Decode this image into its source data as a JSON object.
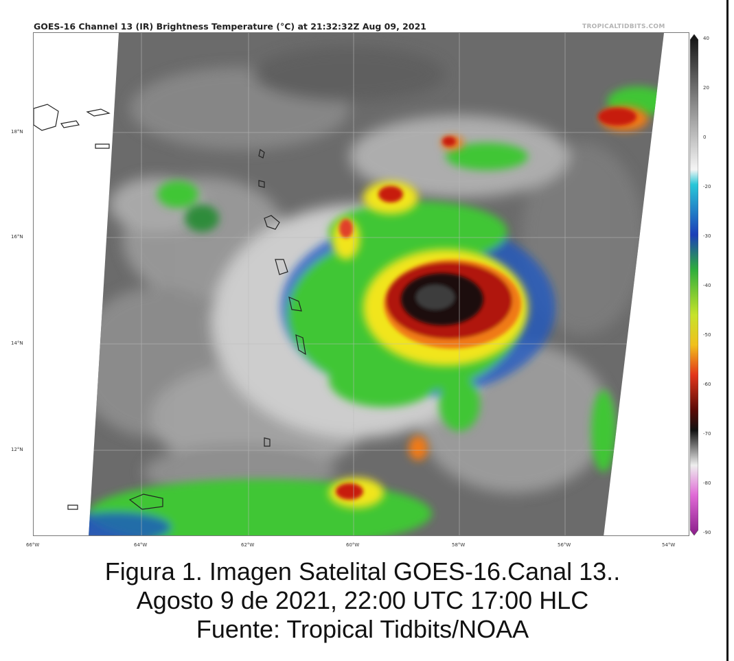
{
  "map_title": "GOES-16 Channel 13 (IR) Brightness Temperature (°C) at 21:32:32Z Aug 09, 2021",
  "watermark": "TROPICALTIDBITS.COM",
  "lat_labels": [
    "18°N",
    "16°N",
    "14°N",
    "12°N"
  ],
  "lon_labels": [
    "66°W",
    "64°W",
    "62°W",
    "60°W",
    "58°W",
    "56°W",
    "54°W"
  ],
  "colorbar": {
    "unit": "°C",
    "ticks": [
      "40",
      "20",
      "0",
      "-20",
      "-30",
      "-40",
      "-50",
      "-60",
      "-70",
      "-80",
      "-90"
    ]
  },
  "caption": {
    "line1": "Figura 1. Imagen Satelital GOES-16.Canal 13..",
    "line2": "Agosto 9 de 2021, 22:00 UTC 17:00 HLC",
    "line3": "Fuente: Tropical Tidbits/NOAA"
  },
  "colors": {
    "cloud_gray": "#6e6e6e",
    "cold_top_black": "#1a0a08",
    "deep_red": "#b0150a",
    "orange": "#f07a14",
    "yellow": "#f1e51c",
    "green": "#3fc634",
    "blue": "#1c56c6"
  }
}
